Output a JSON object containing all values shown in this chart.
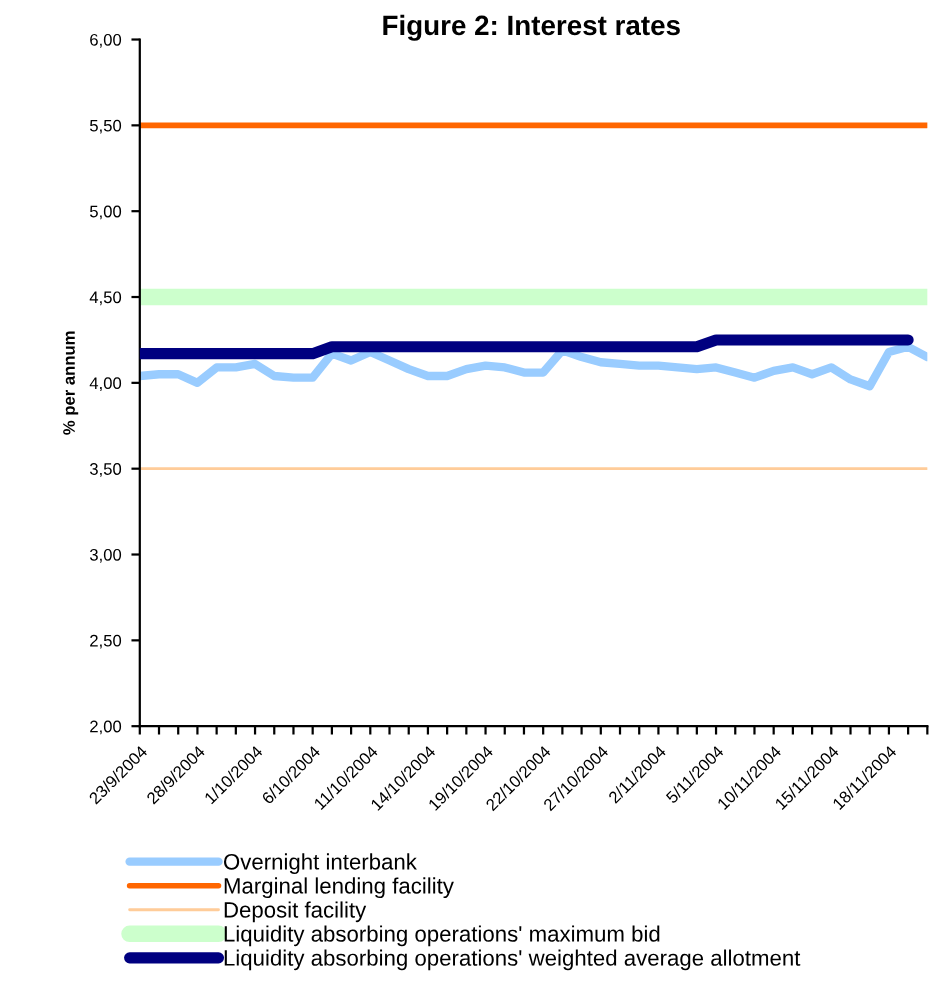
{
  "chart_data": {
    "type": "line",
    "title": "Figure 2: Interest rates",
    "ylabel": "% per annum",
    "categories": [
      "23/9/2004",
      null,
      null,
      "28/9/2004",
      null,
      null,
      "1/10/2004",
      null,
      null,
      "6/10/2004",
      null,
      null,
      "11/10/2004",
      null,
      null,
      "14/10/2004",
      null,
      null,
      "19/10/2004",
      null,
      null,
      "22/10/2004",
      null,
      null,
      "27/10/2004",
      null,
      null,
      "2/11/2004",
      null,
      null,
      "5/11/2004",
      null,
      null,
      "10/11/2004",
      null,
      null,
      "15/11/2004",
      null,
      null,
      "18/11/2004",
      null,
      null
    ],
    "series": [
      {
        "name": "Overnight interbank",
        "color": "#99ccff",
        "values": [
          4.04,
          4.05,
          4.05,
          4.0,
          4.09,
          4.09,
          4.11,
          4.04,
          4.03,
          4.03,
          4.17,
          4.13,
          4.18,
          4.13,
          4.08,
          4.04,
          4.04,
          4.08,
          4.1,
          4.09,
          4.06,
          4.06,
          4.19,
          4.15,
          4.12,
          4.11,
          4.1,
          4.1,
          4.09,
          4.08,
          4.09,
          4.06,
          4.03,
          4.07,
          4.09,
          4.05,
          4.09,
          4.02,
          3.98,
          4.18,
          4.21,
          4.15
        ]
      },
      {
        "name": "Marginal lending facility",
        "color": "#ff6600",
        "values": [
          5.5,
          5.5,
          5.5,
          5.5,
          5.5,
          5.5,
          5.5,
          5.5,
          5.5,
          5.5,
          5.5,
          5.5,
          5.5,
          5.5,
          5.5,
          5.5,
          5.5,
          5.5,
          5.5,
          5.5,
          5.5,
          5.5,
          5.5,
          5.5,
          5.5,
          5.5,
          5.5,
          5.5,
          5.5,
          5.5,
          5.5,
          5.5,
          5.5,
          5.5,
          5.5,
          5.5,
          5.5,
          5.5,
          5.5,
          5.5,
          5.5,
          5.5
        ]
      },
      {
        "name": "Deposit facility",
        "color": "#ffcc99",
        "values": [
          3.5,
          3.5,
          3.5,
          3.5,
          3.5,
          3.5,
          3.5,
          3.5,
          3.5,
          3.5,
          3.5,
          3.5,
          3.5,
          3.5,
          3.5,
          3.5,
          3.5,
          3.5,
          3.5,
          3.5,
          3.5,
          3.5,
          3.5,
          3.5,
          3.5,
          3.5,
          3.5,
          3.5,
          3.5,
          3.5,
          3.5,
          3.5,
          3.5,
          3.5,
          3.5,
          3.5,
          3.5,
          3.5,
          3.5,
          3.5,
          3.5,
          3.5
        ]
      },
      {
        "name": "Liquidity absorbing operations' maximum bid",
        "color": "#ccffcc",
        "values": [
          4.5,
          4.5,
          4.5,
          4.5,
          4.5,
          4.5,
          4.5,
          4.5,
          4.5,
          4.5,
          4.5,
          4.5,
          4.5,
          4.5,
          4.5,
          4.5,
          4.5,
          4.5,
          4.5,
          4.5,
          4.5,
          4.5,
          4.5,
          4.5,
          4.5,
          4.5,
          4.5,
          4.5,
          4.5,
          4.5,
          4.5,
          4.5,
          4.5,
          4.5,
          4.5,
          4.5,
          4.5,
          4.5,
          4.5,
          4.5,
          4.5,
          4.5
        ]
      },
      {
        "name": "Liquidity absorbing operations' weighted average allotment",
        "color": "#000080",
        "values": [
          4.17,
          4.17,
          4.17,
          4.17,
          4.17,
          4.17,
          4.17,
          4.17,
          4.17,
          4.17,
          4.21,
          4.21,
          4.21,
          4.21,
          4.21,
          4.21,
          4.21,
          4.21,
          4.21,
          4.21,
          4.21,
          4.21,
          4.21,
          4.21,
          4.21,
          4.21,
          4.21,
          4.21,
          4.21,
          4.21,
          4.25,
          4.25,
          4.25,
          4.25,
          4.25,
          4.25,
          4.25,
          4.25,
          4.25,
          4.25,
          4.25,
          null
        ]
      }
    ],
    "ylim": [
      2,
      6
    ],
    "yticks": [
      {
        "value": 2,
        "label": "2,00"
      },
      {
        "value": 2.5,
        "label": "2,50"
      },
      {
        "value": 3,
        "label": "3,00"
      },
      {
        "value": 3.5,
        "label": "3,50"
      },
      {
        "value": 4,
        "label": "4,00"
      },
      {
        "value": 4.5,
        "label": "4,50"
      },
      {
        "value": 5,
        "label": "5,00"
      },
      {
        "value": 5.5,
        "label": "5,50"
      },
      {
        "value": 6,
        "label": "6,00"
      }
    ],
    "grid": false,
    "legend": "bottom",
    "marker": "none",
    "line_style": "solid"
  }
}
